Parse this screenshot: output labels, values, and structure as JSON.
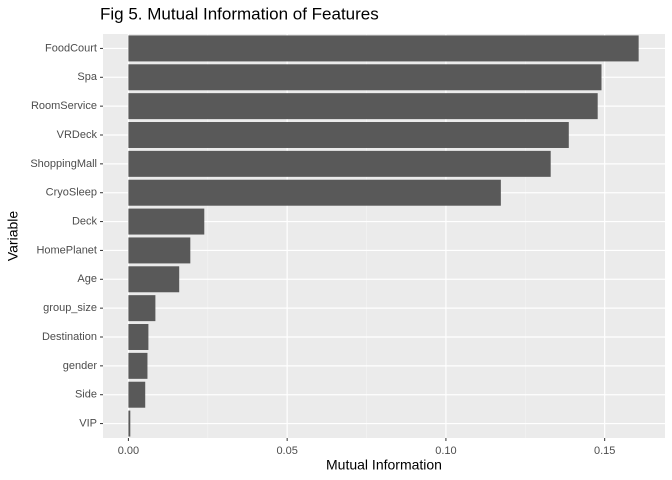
{
  "chart_data": {
    "type": "hbar",
    "title": "Fig 5. Mutual Information of Features",
    "xlabel": "Mutual Information",
    "ylabel": "Variable",
    "categories": [
      "FoodCourt",
      "Spa",
      "RoomService",
      "VRDeck",
      "ShoppingMall",
      "CryoSleep",
      "Deck",
      "HomePlanet",
      "Age",
      "group_size",
      "Destination",
      "gender",
      "Side",
      "VIP"
    ],
    "values": [
      0.1607,
      0.149,
      0.1478,
      0.1387,
      0.133,
      0.1173,
      0.0239,
      0.0195,
      0.016,
      0.0085,
      0.0063,
      0.006,
      0.0053,
      0.0006
    ],
    "color": "#595959",
    "xlim": [
      -0.008,
      0.169
    ],
    "xticks": [
      {
        "value": 0,
        "label": "0.00"
      },
      {
        "value": 0.05,
        "label": "0.05"
      },
      {
        "value": 0.1,
        "label": "0.10"
      },
      {
        "value": 0.15,
        "label": "0.15"
      }
    ],
    "grid": true,
    "minor_grid": true
  }
}
